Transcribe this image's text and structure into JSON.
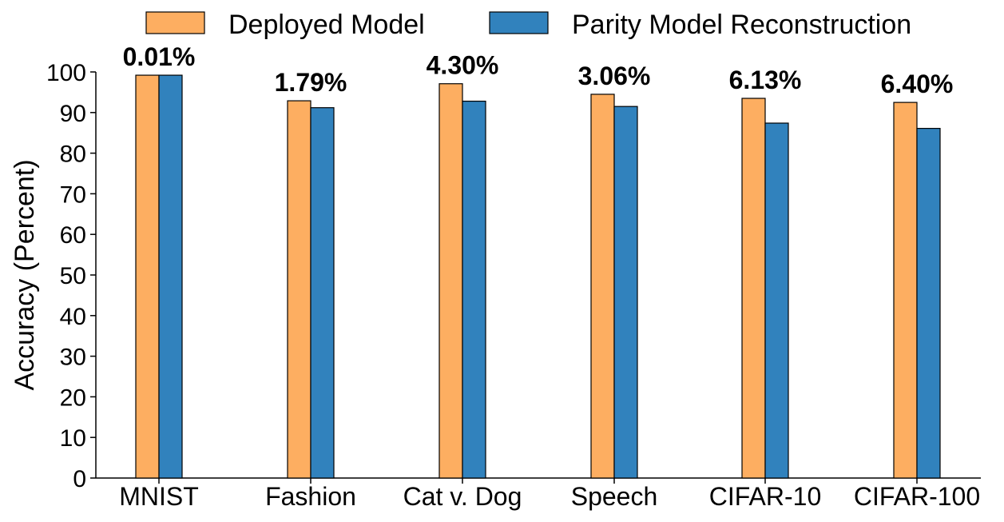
{
  "chart_data": {
    "type": "bar",
    "categories": [
      "MNIST",
      "Fashion",
      "Cat v. Dog",
      "Speech",
      "CIFAR-10",
      "CIFAR-100"
    ],
    "series": [
      {
        "name": "Deployed Model",
        "color": "#fdae61",
        "values": [
          99.2,
          92.9,
          97.1,
          94.5,
          93.5,
          92.5
        ]
      },
      {
        "name": "Parity Model Reconstruction",
        "color": "#3182bd",
        "values": [
          99.2,
          91.2,
          92.8,
          91.5,
          87.4,
          86.1
        ]
      }
    ],
    "annotations": [
      "0.01%",
      "1.79%",
      "4.30%",
      "3.06%",
      "6.13%",
      "6.40%"
    ],
    "xlabel": "",
    "ylabel": "Accuracy (Percent)",
    "ylim": [
      0,
      100
    ],
    "yticks": [
      0,
      10,
      20,
      30,
      40,
      50,
      60,
      70,
      80,
      90,
      100
    ],
    "grid": false,
    "legend_position": "top"
  }
}
